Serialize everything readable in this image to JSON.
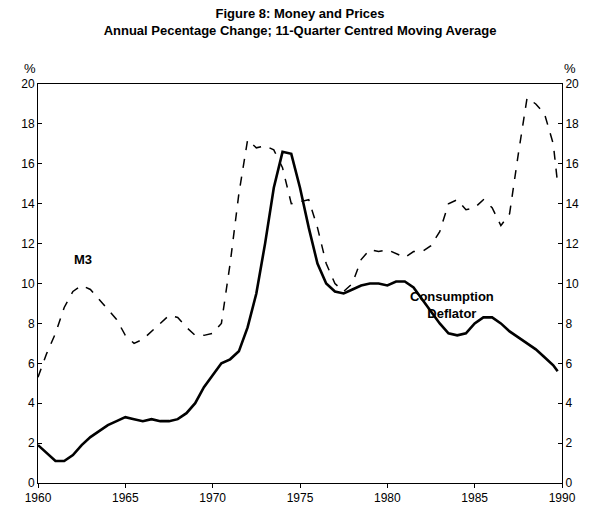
{
  "chart_data": {
    "type": "line",
    "title": "Figure 8: Money and Prices",
    "subtitle": "Annual Pecentage Change; 11-Quarter Centred Moving Average",
    "ylabel": "%",
    "y2label": "%",
    "xlim": [
      1960,
      1990
    ],
    "xticks": [
      1960,
      1965,
      1970,
      1975,
      1980,
      1985,
      1990
    ],
    "ylim": [
      0,
      20
    ],
    "yticks": [
      0,
      2,
      4,
      6,
      8,
      10,
      12,
      14,
      16,
      18,
      20
    ],
    "y2lim": [
      0,
      20
    ],
    "y2ticks": [
      0,
      2,
      4,
      6,
      8,
      10,
      12,
      14,
      16,
      18,
      20
    ],
    "grid": false,
    "series": [
      {
        "name": "M3",
        "color": "#000000",
        "line_style": "dashed",
        "x": [
          1960,
          1960.5,
          1961,
          1961.5,
          1962,
          1962.5,
          1963,
          1963.5,
          1964,
          1964.5,
          1965,
          1965.5,
          1966,
          1966.5,
          1967,
          1967.5,
          1968,
          1968.5,
          1969,
          1969.5,
          1970,
          1970.5,
          1971,
          1971.5,
          1972,
          1972.5,
          1973,
          1973.5,
          1974,
          1974.5,
          1975,
          1975.5,
          1976,
          1976.5,
          1977,
          1977.5,
          1978,
          1978.5,
          1979,
          1979.5,
          1980,
          1980.5,
          1981,
          1981.5,
          1982,
          1982.5,
          1983,
          1983.5,
          1984,
          1984.5,
          1985,
          1985.5,
          1986,
          1986.5,
          1987,
          1987.5,
          1988,
          1988.5,
          1989,
          1989.5,
          1989.75
        ],
        "values": [
          5.3,
          6.5,
          7.5,
          8.8,
          9.6,
          9.9,
          9.7,
          9.2,
          8.7,
          8.2,
          7.4,
          7.0,
          7.2,
          7.6,
          8.0,
          8.4,
          8.3,
          7.8,
          7.4,
          7.4,
          7.5,
          8.0,
          11.0,
          14.5,
          17.2,
          16.8,
          16.9,
          16.7,
          15.8,
          14.0,
          14.1,
          14.2,
          12.8,
          11.0,
          10.0,
          9.6,
          10.0,
          11.2,
          11.7,
          11.6,
          11.7,
          11.5,
          11.3,
          11.6,
          11.6,
          11.9,
          12.6,
          14.0,
          14.2,
          13.7,
          13.8,
          14.2,
          13.8,
          12.9,
          13.5,
          16.5,
          19.3,
          19.0,
          18.5,
          17.0,
          15.0
        ]
      },
      {
        "name": "Consumption Deflator",
        "color": "#000000",
        "line_style": "solid",
        "x": [
          1960,
          1960.5,
          1961,
          1961.5,
          1962,
          1962.5,
          1963,
          1963.5,
          1964,
          1964.5,
          1965,
          1965.5,
          1966,
          1966.5,
          1967,
          1967.5,
          1968,
          1968.5,
          1969,
          1969.5,
          1970,
          1970.5,
          1971,
          1971.5,
          1972,
          1972.5,
          1973,
          1973.5,
          1974,
          1974.5,
          1975,
          1975.5,
          1976,
          1976.5,
          1977,
          1977.5,
          1978,
          1978.5,
          1979,
          1979.5,
          1980,
          1980.5,
          1981,
          1981.5,
          1982,
          1982.5,
          1983,
          1983.5,
          1984,
          1984.5,
          1985,
          1985.5,
          1986,
          1986.5,
          1987,
          1987.5,
          1988,
          1988.5,
          1989,
          1989.5,
          1989.75
        ],
        "values": [
          1.9,
          1.5,
          1.1,
          1.1,
          1.4,
          1.9,
          2.3,
          2.6,
          2.9,
          3.1,
          3.3,
          3.2,
          3.1,
          3.2,
          3.1,
          3.1,
          3.2,
          3.5,
          4.0,
          4.8,
          5.4,
          6.0,
          6.2,
          6.6,
          7.8,
          9.5,
          12.0,
          14.8,
          16.6,
          16.5,
          14.8,
          12.8,
          11.0,
          10.0,
          9.6,
          9.5,
          9.7,
          9.9,
          10.0,
          10.0,
          9.9,
          10.1,
          10.1,
          9.8,
          9.2,
          8.6,
          8.0,
          7.5,
          7.4,
          7.5,
          8.0,
          8.3,
          8.3,
          8.0,
          7.6,
          7.3,
          7.0,
          6.7,
          6.3,
          5.9,
          5.6
        ]
      }
    ]
  }
}
